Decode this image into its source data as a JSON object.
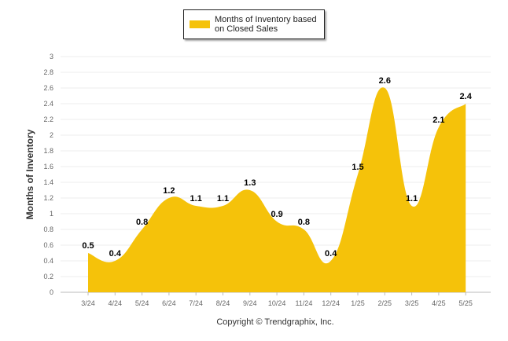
{
  "chart_data": {
    "type": "area",
    "categories": [
      "3/24",
      "4/24",
      "5/24",
      "6/24",
      "7/24",
      "8/24",
      "9/24",
      "10/24",
      "11/24",
      "12/24",
      "1/25",
      "2/25",
      "3/25",
      "4/25",
      "5/25"
    ],
    "series": [
      {
        "name": "Months of Inventory based on Closed Sales",
        "values": [
          0.5,
          0.4,
          0.8,
          1.2,
          1.1,
          1.1,
          1.3,
          0.9,
          0.8,
          0.4,
          1.5,
          2.6,
          1.1,
          2.1,
          2.4
        ]
      }
    ],
    "ylabel": "Months of Inventory",
    "ylim": [
      0,
      3
    ],
    "yticks": [
      "0",
      "0.2",
      "0.4",
      "0.6",
      "0.8",
      "1",
      "1.2",
      "1.4",
      "1.6",
      "1.8",
      "2",
      "2.2",
      "2.4",
      "2.6",
      "2.8",
      "3"
    ],
    "grid": true,
    "legend_position": "top-center",
    "color": "#F5C20A",
    "credit": "Copyright © Trendgraphix, Inc."
  }
}
